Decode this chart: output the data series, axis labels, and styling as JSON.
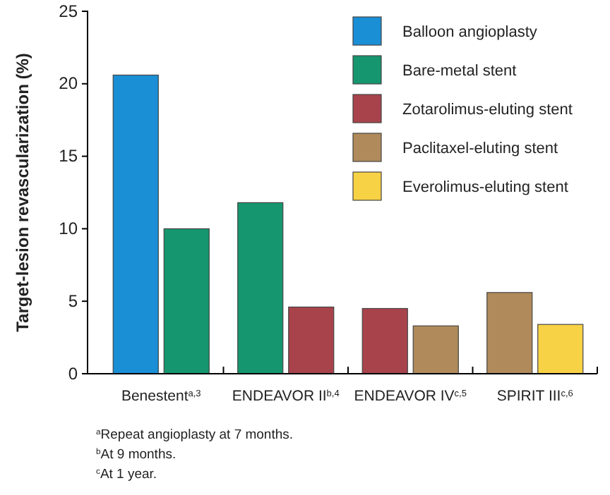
{
  "chart_data": {
    "type": "bar",
    "ylabel": "Target-lesion revascularization (%)",
    "categories": [
      "Benestent$^{a,3}$",
      "ENDEAVOR II$^{b,4}$",
      "ENDEAVOR IV$^{c,5}$",
      "SPIRIT III$^{c,6}$"
    ],
    "series": [
      {
        "name": "Balloon angioplasty",
        "color": "#1a8fd6",
        "values": [
          20.6,
          null,
          null,
          null
        ]
      },
      {
        "name": "Bare-metal stent",
        "color": "#15966e",
        "values": [
          10.0,
          11.8,
          null,
          null
        ]
      },
      {
        "name": "Zotarolimus-eluting stent",
        "color": "#a8434c",
        "values": [
          null,
          4.6,
          4.5,
          null
        ]
      },
      {
        "name": "Paclitaxel-eluting stent",
        "color": "#b08a5a",
        "values": [
          null,
          null,
          3.3,
          5.6
        ]
      },
      {
        "name": "Everolimus-eluting stent",
        "color": "#f8d245",
        "values": [
          null,
          null,
          null,
          3.4
        ]
      }
    ],
    "ylim": [
      0,
      25
    ],
    "yticks": [
      0,
      5,
      10,
      15,
      20,
      25
    ],
    "legend": "top right",
    "annotations": [
      "$^{a}$Repeat angioplasty at 7 months.",
      "$^{b}$At 9 months.",
      "$^{c}$At 1 year."
    ]
  }
}
